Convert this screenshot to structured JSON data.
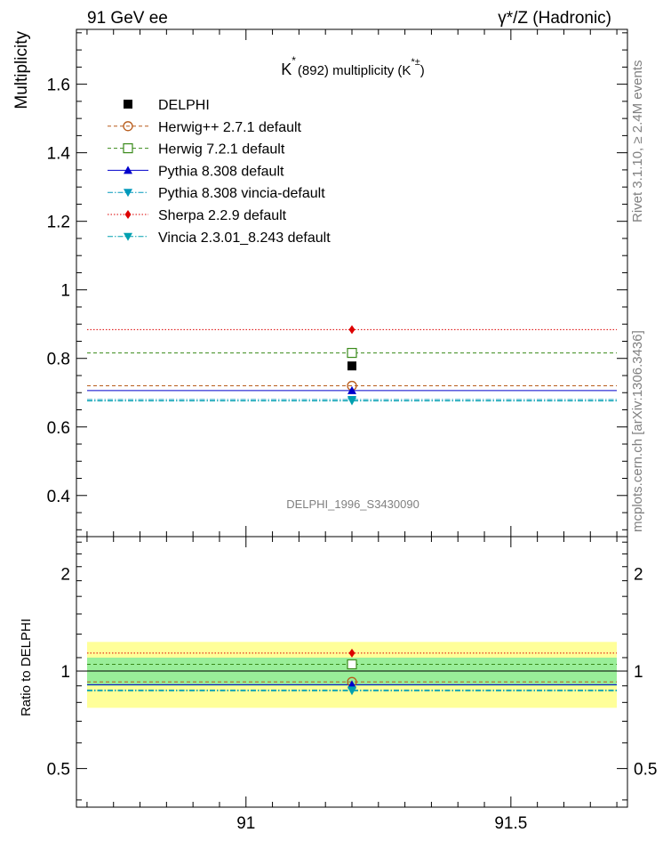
{
  "header": {
    "left": "91 GeV ee",
    "right": "γ*/Z (Hadronic)"
  },
  "side": {
    "rivet": "Rivet 3.1.10, ≥ 2.4M events",
    "mcplots": "mcplots.cern.ch [arXiv:1306.3436]"
  },
  "main": {
    "title_main": "K",
    "title_sup": "*",
    "title_mid": "(892) multiplicity (K",
    "title_sup2": "*±",
    "title_end": ")",
    "ylabel": "Multiplicity",
    "watermark": "DELPHI_1996_S3430090",
    "y_ticks": [
      "0.4",
      "0.6",
      "0.8",
      "1",
      "1.2",
      "1.4",
      "1.6"
    ]
  },
  "ratio": {
    "ylabel": "Ratio to DELPHI",
    "y_ticks": [
      "0.5",
      "1",
      "2"
    ],
    "x_ticks": [
      "91",
      "91.5"
    ]
  },
  "legend": [
    {
      "label": "DELPHI",
      "color": "#000000",
      "marker": "filled-square",
      "line": "none"
    },
    {
      "label": "Herwig++ 2.7.1 default",
      "color": "#b85c1c",
      "marker": "open-circle",
      "line": "dashed"
    },
    {
      "label": "Herwig 7.2.1 default",
      "color": "#3a8a1a",
      "marker": "open-square",
      "line": "dashed"
    },
    {
      "label": "Pythia 8.308 default",
      "color": "#0000cc",
      "marker": "triangle-up",
      "line": "solid"
    },
    {
      "label": "Pythia 8.308 vincia-default",
      "color": "#0099bb",
      "marker": "triangle-down",
      "line": "dashdot"
    },
    {
      "label": "Sherpa 2.2.9 default",
      "color": "#dd0000",
      "marker": "diamond",
      "line": "dotted"
    },
    {
      "label": "Vincia 2.3.01_8.243 default",
      "color": "#00a0b0",
      "marker": "triangle-down",
      "line": "dashdot"
    }
  ],
  "chart_data": {
    "type": "scatter",
    "title": "K*(892) multiplicity (K*±)",
    "xlabel": "",
    "ylabel": "Multiplicity",
    "xlim": [
      90.68,
      91.72
    ],
    "ylim": [
      0.28,
      1.76
    ],
    "ratio_ylim": [
      0.38,
      2.6
    ],
    "ratio_log": true,
    "x": 91.2,
    "data": {
      "name": "DELPHI",
      "value": 0.778,
      "error": 0.0,
      "band_inner": 0.1,
      "band_outer": 0.23
    },
    "series": [
      {
        "name": "Herwig++ 2.7.1 default",
        "value": 0.72
      },
      {
        "name": "Herwig 7.2.1 default",
        "value": 0.816
      },
      {
        "name": "Pythia 8.308 default",
        "value": 0.706
      },
      {
        "name": "Pythia 8.308 vincia-default",
        "value": 0.68
      },
      {
        "name": "Sherpa 2.2.9 default",
        "value": 0.884
      },
      {
        "name": "Vincia 2.3.01_8.243 default",
        "value": 0.676
      }
    ]
  }
}
